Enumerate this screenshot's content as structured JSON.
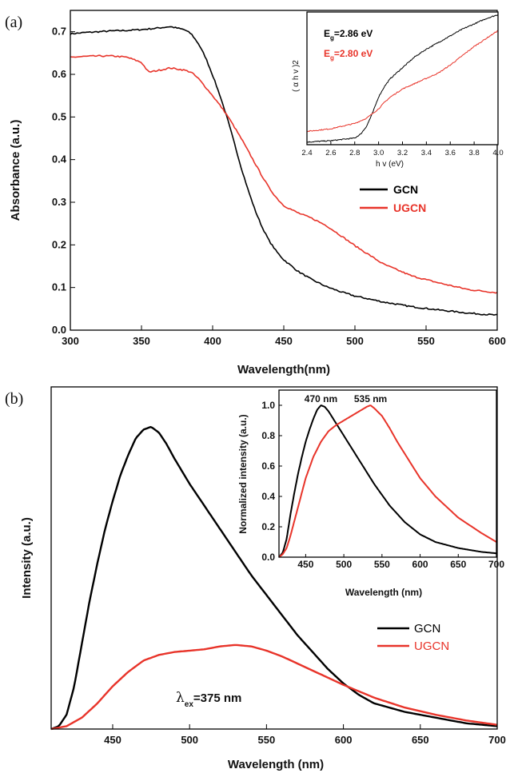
{
  "colors": {
    "gcn": "#000000",
    "ugcn": "#e8342a",
    "text": "#111111"
  },
  "chart_data": [
    {
      "id": "a-main",
      "type": "line",
      "panel_label": "(a)",
      "xlabel": "Wavelength(nm)",
      "ylabel": "Absorbance (a.u.)",
      "xlim": [
        300,
        600
      ],
      "ylim": [
        0.0,
        0.75
      ],
      "xticks": [
        "300",
        "350",
        "400",
        "450",
        "500",
        "550",
        "600"
      ],
      "yticks": [
        "0.0",
        "0.1",
        "0.2",
        "0.3",
        "0.4",
        "0.5",
        "0.6",
        "0.7"
      ],
      "legend": {
        "placement": "center-right"
      },
      "series": [
        {
          "name": "GCN",
          "color": "#000000",
          "x": [
            300,
            310,
            320,
            330,
            340,
            350,
            360,
            370,
            380,
            385,
            390,
            395,
            400,
            405,
            410,
            415,
            420,
            425,
            430,
            435,
            440,
            445,
            450,
            460,
            470,
            480,
            490,
            500,
            520,
            540,
            560,
            580,
            600
          ],
          "y": [
            0.695,
            0.698,
            0.7,
            0.702,
            0.703,
            0.705,
            0.708,
            0.712,
            0.705,
            0.695,
            0.672,
            0.64,
            0.598,
            0.552,
            0.5,
            0.442,
            0.382,
            0.328,
            0.28,
            0.24,
            0.208,
            0.184,
            0.165,
            0.138,
            0.118,
            0.102,
            0.09,
            0.08,
            0.066,
            0.055,
            0.047,
            0.04,
            0.035
          ]
        },
        {
          "name": "UGCN",
          "color": "#e8342a",
          "x": [
            300,
            310,
            320,
            330,
            340,
            350,
            355,
            360,
            370,
            380,
            385,
            390,
            395,
            400,
            405,
            410,
            415,
            420,
            425,
            430,
            435,
            440,
            445,
            450,
            460,
            470,
            480,
            490,
            500,
            520,
            540,
            560,
            580,
            600
          ],
          "y": [
            0.64,
            0.642,
            0.643,
            0.643,
            0.64,
            0.628,
            0.605,
            0.608,
            0.615,
            0.61,
            0.605,
            0.59,
            0.57,
            0.55,
            0.528,
            0.505,
            0.478,
            0.45,
            0.42,
            0.39,
            0.36,
            0.332,
            0.31,
            0.292,
            0.275,
            0.262,
            0.245,
            0.222,
            0.198,
            0.155,
            0.127,
            0.11,
            0.095,
            0.088
          ]
        }
      ]
    },
    {
      "id": "a-inset",
      "type": "line",
      "xlabel": "h v  (eV)",
      "ylabel": "( α h v )2",
      "xlim": [
        2.4,
        4.0
      ],
      "ylim": [
        0,
        1
      ],
      "xticks": [
        "2.4",
        "2.6",
        "2.8",
        "3.0",
        "3.2",
        "3.4",
        "3.6",
        "3.8",
        "4.0"
      ],
      "annotations": [
        {
          "base": "E",
          "sub": "g",
          "rest": "=2.86 eV",
          "color": "#000000"
        },
        {
          "base": "E",
          "sub": "g",
          "rest": "=2.80 eV",
          "color": "#e8342a"
        }
      ],
      "series": [
        {
          "name": "GCN",
          "color": "#000000",
          "x": [
            2.4,
            2.6,
            2.8,
            2.85,
            2.9,
            2.95,
            3.0,
            3.05,
            3.1,
            3.2,
            3.3,
            3.4,
            3.5,
            3.6,
            3.7,
            3.8,
            3.9,
            4.0
          ],
          "y": [
            0.02,
            0.03,
            0.05,
            0.08,
            0.14,
            0.24,
            0.36,
            0.44,
            0.5,
            0.58,
            0.66,
            0.72,
            0.77,
            0.82,
            0.87,
            0.91,
            0.95,
            0.98
          ]
        },
        {
          "name": "UGCN",
          "color": "#e8342a",
          "x": [
            2.4,
            2.6,
            2.8,
            2.9,
            3.0,
            3.05,
            3.1,
            3.2,
            3.3,
            3.4,
            3.5,
            3.6,
            3.7,
            3.8,
            3.9,
            4.0
          ],
          "y": [
            0.1,
            0.12,
            0.16,
            0.2,
            0.27,
            0.32,
            0.36,
            0.42,
            0.46,
            0.5,
            0.54,
            0.6,
            0.67,
            0.74,
            0.8,
            0.86
          ]
        }
      ]
    },
    {
      "id": "b-main",
      "type": "line",
      "panel_label": "(b)",
      "xlabel": "Wavelength (nm)",
      "ylabel": "Intensity (a.u.)",
      "xlim": [
        410,
        700
      ],
      "ylim": [
        0,
        1.2
      ],
      "xticks": [
        "450",
        "500",
        "550",
        "600",
        "650",
        "700"
      ],
      "annotation": {
        "base": "λ",
        "sub": "ex",
        "rest": "=375 nm"
      },
      "legend": {
        "placement": "center-right"
      },
      "series": [
        {
          "name": "GCN",
          "color": "#000000",
          "x": [
            410,
            415,
            420,
            425,
            430,
            435,
            440,
            445,
            450,
            455,
            460,
            465,
            470,
            475,
            480,
            485,
            490,
            500,
            510,
            520,
            530,
            540,
            550,
            560,
            570,
            580,
            590,
            600,
            610,
            620,
            640,
            660,
            680,
            700
          ],
          "y": [
            0.0,
            0.01,
            0.05,
            0.15,
            0.3,
            0.45,
            0.58,
            0.7,
            0.8,
            0.89,
            0.96,
            1.02,
            1.05,
            1.06,
            1.04,
            1.0,
            0.95,
            0.86,
            0.78,
            0.7,
            0.62,
            0.54,
            0.47,
            0.4,
            0.33,
            0.27,
            0.21,
            0.16,
            0.12,
            0.09,
            0.06,
            0.04,
            0.02,
            0.01
          ]
        },
        {
          "name": "UGCN",
          "color": "#e8342a",
          "x": [
            410,
            420,
            430,
            440,
            450,
            460,
            470,
            480,
            490,
            500,
            510,
            520,
            530,
            540,
            550,
            560,
            570,
            580,
            590,
            600,
            620,
            640,
            660,
            680,
            700
          ],
          "y": [
            0.0,
            0.01,
            0.04,
            0.09,
            0.15,
            0.2,
            0.24,
            0.26,
            0.27,
            0.275,
            0.28,
            0.29,
            0.295,
            0.29,
            0.275,
            0.255,
            0.23,
            0.205,
            0.18,
            0.155,
            0.11,
            0.075,
            0.05,
            0.03,
            0.015
          ]
        }
      ]
    },
    {
      "id": "b-inset",
      "type": "line",
      "xlabel": "Wavelength (nm)",
      "ylabel": "Normalized intensity (a.u.)",
      "xlim": [
        415,
        700
      ],
      "ylim": [
        0,
        1.1
      ],
      "xticks": [
        "450",
        "500",
        "550",
        "600",
        "650",
        "700"
      ],
      "yticks": [
        "0.0",
        "0.2",
        "0.4",
        "0.6",
        "0.8",
        "1.0"
      ],
      "peak_labels": [
        {
          "text": "470 nm",
          "x": 470
        },
        {
          "text": "535 nm",
          "x": 535
        }
      ],
      "series": [
        {
          "name": "GCN",
          "color": "#000000",
          "x": [
            415,
            420,
            425,
            430,
            435,
            440,
            445,
            450,
            455,
            460,
            465,
            470,
            475,
            480,
            490,
            500,
            510,
            520,
            530,
            540,
            550,
            560,
            580,
            600,
            620,
            650,
            680,
            700
          ],
          "y": [
            0.0,
            0.03,
            0.12,
            0.28,
            0.42,
            0.55,
            0.66,
            0.76,
            0.84,
            0.91,
            0.97,
            1.0,
            0.99,
            0.96,
            0.88,
            0.8,
            0.72,
            0.64,
            0.56,
            0.48,
            0.41,
            0.34,
            0.23,
            0.15,
            0.1,
            0.06,
            0.035,
            0.025
          ]
        },
        {
          "name": "UGCN",
          "color": "#e8342a",
          "x": [
            415,
            420,
            425,
            430,
            440,
            450,
            460,
            470,
            480,
            490,
            500,
            510,
            520,
            530,
            535,
            540,
            550,
            560,
            570,
            580,
            600,
            620,
            650,
            680,
            700
          ],
          "y": [
            0.0,
            0.02,
            0.06,
            0.14,
            0.33,
            0.52,
            0.66,
            0.76,
            0.83,
            0.87,
            0.9,
            0.93,
            0.96,
            0.99,
            1.0,
            0.98,
            0.93,
            0.85,
            0.76,
            0.68,
            0.52,
            0.4,
            0.26,
            0.16,
            0.1
          ]
        }
      ]
    }
  ]
}
